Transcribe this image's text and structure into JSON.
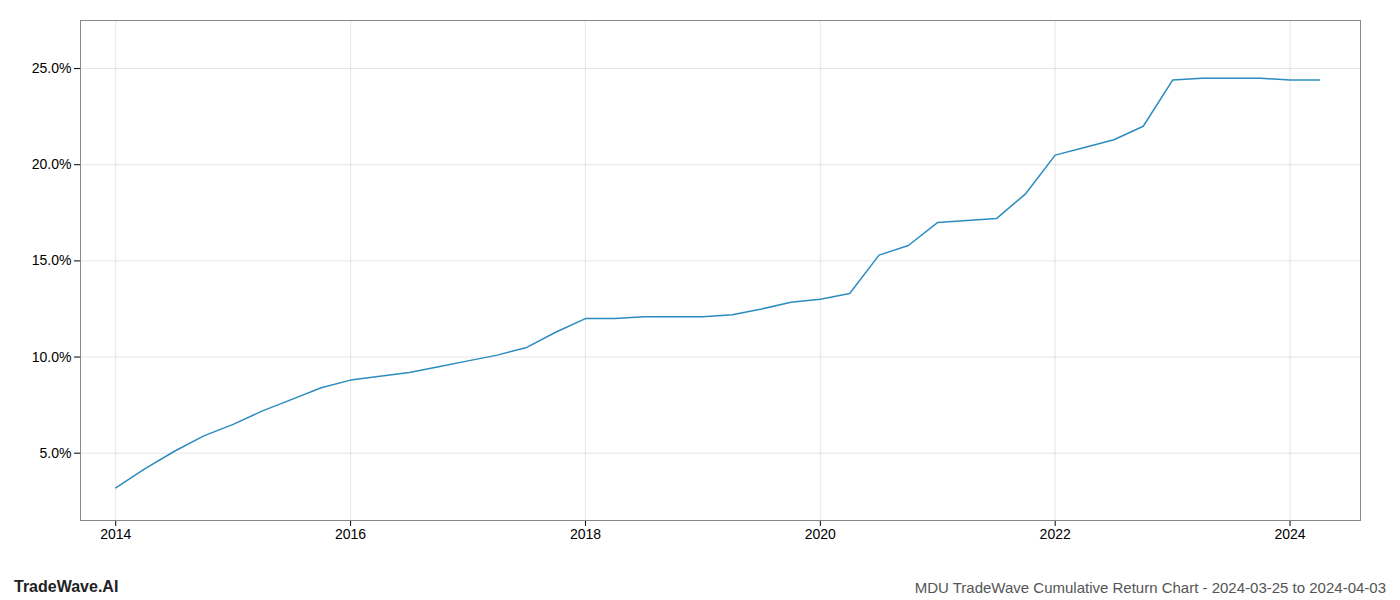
{
  "chart_data": {
    "type": "line",
    "title": "MDU TradeWave Cumulative Return Chart - 2024-03-25 to 2024-04-03",
    "annotations": [
      "TradeWave.AI"
    ],
    "x": [
      2014.0,
      2014.25,
      2014.5,
      2014.75,
      2015.0,
      2015.25,
      2015.5,
      2015.75,
      2016.0,
      2016.25,
      2016.5,
      2016.75,
      2017.0,
      2017.25,
      2017.5,
      2017.75,
      2018.0,
      2018.25,
      2018.5,
      2018.75,
      2019.0,
      2019.25,
      2019.5,
      2019.75,
      2020.0,
      2020.25,
      2020.5,
      2020.75,
      2021.0,
      2021.25,
      2021.5,
      2021.75,
      2022.0,
      2022.25,
      2022.5,
      2022.75,
      2023.0,
      2023.25,
      2023.5,
      2023.75,
      2024.0,
      2024.25
    ],
    "values": [
      3.2,
      4.2,
      5.1,
      5.9,
      6.5,
      7.2,
      7.8,
      8.4,
      8.8,
      9.0,
      9.2,
      9.5,
      9.8,
      10.1,
      10.5,
      11.3,
      12.0,
      12.0,
      12.1,
      12.1,
      12.1,
      12.2,
      12.5,
      12.85,
      13.0,
      13.3,
      15.3,
      15.8,
      17.0,
      17.1,
      17.2,
      18.5,
      20.5,
      20.9,
      21.3,
      22.0,
      24.4,
      24.5,
      24.5,
      24.5,
      24.4,
      24.4
    ],
    "color": "#2b8cbe",
    "xlim": [
      2013.7,
      2024.6
    ],
    "ylim": [
      1.5,
      27.5
    ],
    "xticks": [
      2014,
      2016,
      2018,
      2020,
      2022,
      2024
    ],
    "yticks": [
      {
        "value": 5.0,
        "label": "5.0%"
      },
      {
        "value": 10.0,
        "label": "10.0%"
      },
      {
        "value": 15.0,
        "label": "15.0%"
      },
      {
        "value": 20.0,
        "label": "20.0%"
      },
      {
        "value": 25.0,
        "label": "25.0%"
      }
    ],
    "grid": true
  }
}
